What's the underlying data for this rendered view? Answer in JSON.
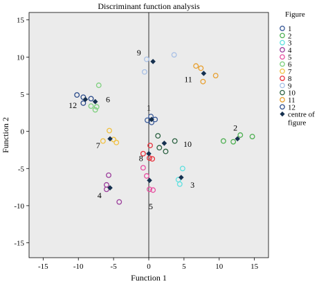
{
  "chart_data": {
    "type": "scatter",
    "title": "Discriminant function analysis",
    "xlabel": "Function 1",
    "ylabel": "Function 2",
    "xlim": [
      -17,
      17
    ],
    "ylim": [
      -17,
      16
    ],
    "xticks": [
      -15,
      -10,
      -5,
      0,
      5,
      10,
      15
    ],
    "yticks": [
      -15,
      -10,
      -5,
      0,
      5,
      10,
      15
    ],
    "grid": false,
    "reference_lines": [
      0
    ],
    "background": "#ebebeb",
    "legend": {
      "title": "Figure",
      "position": "right",
      "centroid_label": "centre of figure"
    },
    "centroid_color": "#15304f",
    "series": [
      {
        "name": "1",
        "color": "#3a5a98",
        "label_at": [
          0.0,
          3.2
        ],
        "points": [
          [
            0.3,
            2.0
          ],
          [
            0.9,
            1.6
          ],
          [
            0.4,
            1.2
          ],
          [
            -0.2,
            1.5
          ]
        ],
        "centroid": [
          0.4,
          1.6
        ]
      },
      {
        "name": "2",
        "color": "#4caf50",
        "label_at": [
          12.3,
          0.5
        ],
        "points": [
          [
            10.6,
            -1.3
          ],
          [
            12.0,
            -1.4
          ],
          [
            13.0,
            -0.5
          ],
          [
            14.7,
            -0.7
          ]
        ],
        "centroid": [
          12.6,
          -1.0
        ]
      },
      {
        "name": "3",
        "color": "#5fe0e0",
        "label_at": [
          6.2,
          -7.2
        ],
        "points": [
          [
            4.8,
            -5.0
          ],
          [
            4.2,
            -6.5
          ],
          [
            4.4,
            -7.1
          ]
        ],
        "centroid": [
          4.6,
          -6.2
        ]
      },
      {
        "name": "4",
        "color": "#9b3d9b",
        "label_at": [
          -7.0,
          -8.6
        ],
        "points": [
          [
            -5.7,
            -5.9
          ],
          [
            -6.0,
            -7.2
          ],
          [
            -6.0,
            -7.8
          ],
          [
            -4.2,
            -9.5
          ]
        ],
        "centroid": [
          -5.5,
          -7.6
        ]
      },
      {
        "name": "5",
        "color": "#e84ea0",
        "label_at": [
          0.3,
          -10.1
        ],
        "points": [
          [
            -0.8,
            -4.9
          ],
          [
            -0.3,
            -6.0
          ],
          [
            0.1,
            -7.8
          ],
          [
            0.6,
            -7.9
          ]
        ],
        "centroid": [
          0.1,
          -6.6
        ]
      },
      {
        "name": "6",
        "color": "#7ed07e",
        "label_at": [
          -5.8,
          4.3
        ],
        "points": [
          [
            -7.1,
            6.2
          ],
          [
            -8.2,
            3.4
          ],
          [
            -7.4,
            3.3
          ],
          [
            -7.6,
            2.9
          ]
        ],
        "centroid": [
          -7.6,
          4.0
        ]
      },
      {
        "name": "7",
        "color": "#f0c040",
        "label_at": [
          -7.2,
          -1.9
        ],
        "points": [
          [
            -5.6,
            0.1
          ],
          [
            -6.5,
            -1.3
          ],
          [
            -5.0,
            -1.1
          ],
          [
            -4.6,
            -1.5
          ]
        ],
        "centroid": [
          -5.5,
          -1.0
        ]
      },
      {
        "name": "8",
        "color": "#e8303a",
        "label_at": [
          -1.1,
          -3.6
        ],
        "points": [
          [
            -0.8,
            -3.0
          ],
          [
            0.2,
            -1.9
          ],
          [
            0.1,
            -3.6
          ],
          [
            0.5,
            -3.7
          ]
        ],
        "centroid": [
          0.0,
          -3.0
        ]
      },
      {
        "name": "9",
        "color": "#a8c0e6",
        "label_at": [
          -1.4,
          10.6
        ],
        "points": [
          [
            -0.6,
            8.0
          ],
          [
            -0.3,
            9.7
          ],
          [
            3.6,
            10.3
          ]
        ],
        "centroid": [
          0.6,
          9.4
        ]
      },
      {
        "name": "10",
        "color": "#2a6040",
        "label_at": [
          5.5,
          -1.7
        ],
        "points": [
          [
            1.3,
            -0.6
          ],
          [
            3.7,
            -1.3
          ],
          [
            1.5,
            -2.2
          ],
          [
            2.4,
            -2.7
          ]
        ],
        "centroid": [
          2.2,
          -1.6
        ]
      },
      {
        "name": "11",
        "color": "#e8a030",
        "label_at": [
          5.6,
          7.0
        ],
        "points": [
          [
            6.7,
            8.8
          ],
          [
            7.4,
            8.5
          ],
          [
            9.5,
            7.5
          ],
          [
            7.7,
            6.7
          ]
        ],
        "centroid": [
          7.8,
          7.8
        ]
      },
      {
        "name": "12",
        "color": "#2a4a8a",
        "label_at": [
          -10.8,
          3.5
        ],
        "points": [
          [
            -10.2,
            4.9
          ],
          [
            -9.3,
            4.6
          ],
          [
            -8.2,
            4.4
          ],
          [
            -9.3,
            3.8
          ]
        ],
        "centroid": [
          -9.0,
          4.3
        ]
      }
    ]
  }
}
